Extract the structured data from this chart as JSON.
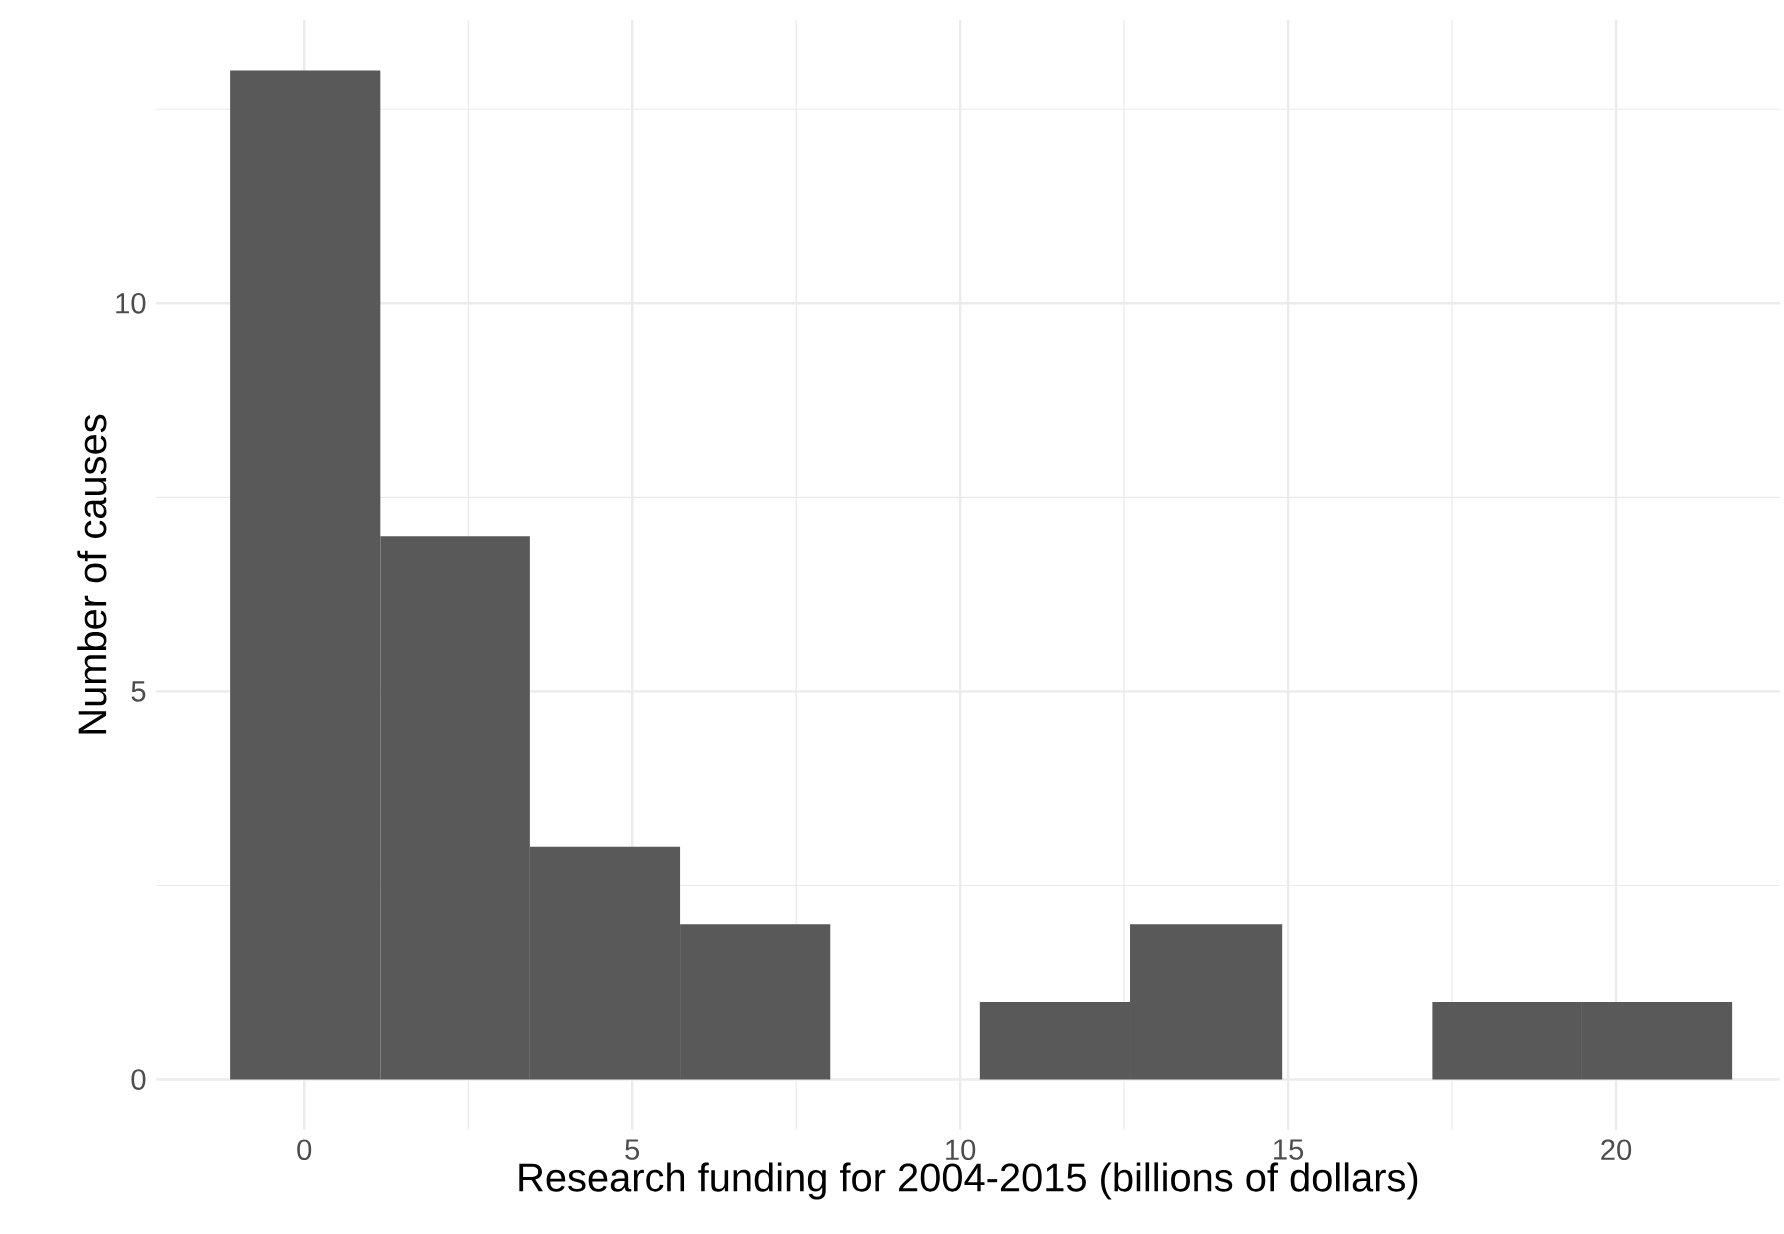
{
  "chart_data": {
    "type": "histogram",
    "xlabel": "Research funding for 2004-2015 (billions of dollars)",
    "ylabel": "Number of causes",
    "bins": [
      -1.13,
      1.16,
      3.44,
      5.73,
      8.02,
      10.3,
      12.59,
      14.91,
      17.2,
      19.48,
      21.77
    ],
    "values": [
      13,
      7,
      3,
      2,
      0,
      1,
      2,
      0,
      1,
      1
    ],
    "color": "#595959",
    "xlim": [
      -2.26,
      22.5
    ],
    "ylim": [
      -0.65,
      13.65
    ],
    "xticks": [
      0,
      {
        "value": 2.5,
        "label": null
      },
      5,
      {
        "value": 7.5,
        "label": null
      },
      10,
      {
        "value": 12.5,
        "label": null
      },
      15,
      {
        "value": 17.5,
        "label": null
      },
      20
    ],
    "yticks": [
      0,
      {
        "value": 2.5,
        "label": null
      },
      5,
      {
        "value": 7.5,
        "label": null
      },
      10,
      {
        "value": 12.5,
        "label": null
      }
    ],
    "grid": true
  }
}
